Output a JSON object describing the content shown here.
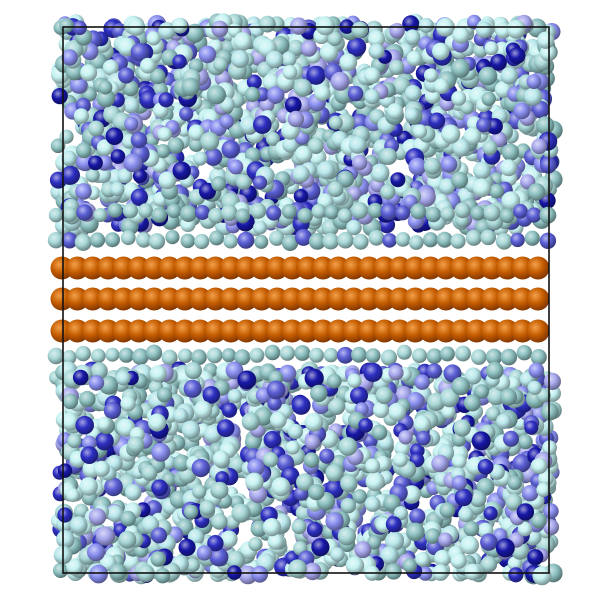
{
  "scene": {
    "background": "#ffffff",
    "box_border_color": "#111111",
    "electrolyte_palette": [
      "#c6f2f2",
      "#a9d8d8",
      "#8fc2c2",
      "#b9e8ec",
      "#8a8ff0",
      "#5b5fd6",
      "#2d2fc2",
      "#1717a8",
      "#a8a8ee"
    ],
    "electrode_colors": {
      "base": "#c45c00",
      "highlight": "#f3a04a",
      "shadow": "#7a3200"
    },
    "electrode_rows": 3,
    "electrode_atoms_per_row": 32,
    "regions": [
      "upper-electrolyte",
      "electrode-slab",
      "lower-electrolyte"
    ]
  }
}
